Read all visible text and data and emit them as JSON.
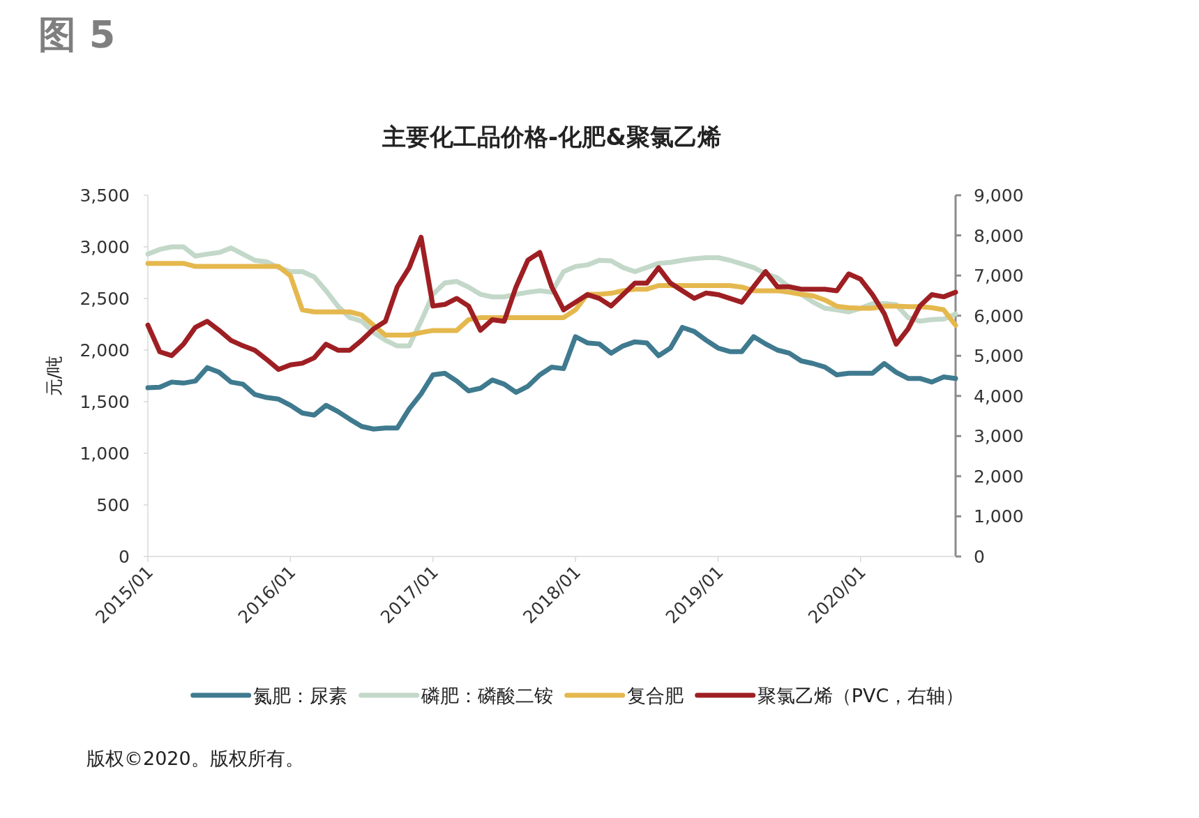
{
  "chart_data": {
    "type": "line",
    "title": "主要化工品价格-化肥&聚氯乙烯",
    "ylabel": "元/吨",
    "annotations": [
      "图 5",
      "版权©2020。版权所有。"
    ],
    "x": [
      "2015-01",
      "2015-02",
      "2015-03",
      "2015-04",
      "2015-05",
      "2015-06",
      "2015-07",
      "2015-08",
      "2015-09",
      "2015-10",
      "2015-11",
      "2015-12",
      "2016-01",
      "2016-02",
      "2016-03",
      "2016-04",
      "2016-05",
      "2016-06",
      "2016-07",
      "2016-08",
      "2016-09",
      "2016-10",
      "2016-11",
      "2016-12",
      "2017-01",
      "2017-02",
      "2017-03",
      "2017-04",
      "2017-05",
      "2017-06",
      "2017-07",
      "2017-08",
      "2017-09",
      "2017-10",
      "2017-11",
      "2017-12",
      "2018-01",
      "2018-02",
      "2018-03",
      "2018-04",
      "2018-05",
      "2018-06",
      "2018-07",
      "2018-08",
      "2018-09",
      "2018-10",
      "2018-11",
      "2018-12",
      "2019-01",
      "2019-02",
      "2019-03",
      "2019-04",
      "2019-05",
      "2019-06",
      "2019-07",
      "2019-08",
      "2019-09",
      "2019-10",
      "2019-11",
      "2019-12",
      "2020-01",
      "2020-02",
      "2020-03",
      "2020-04",
      "2020-05",
      "2020-06",
      "2020-07",
      "2020-08",
      "2020-09"
    ],
    "xlim": [
      "2015-01",
      "2020-09"
    ],
    "xticks": [
      {
        "value": "2015-01",
        "label": "2015/01"
      },
      {
        "value": "2016-01",
        "label": "2016/01"
      },
      {
        "value": "2017-01",
        "label": "2017/01"
      },
      {
        "value": "2018-01",
        "label": "2018/01"
      },
      {
        "value": "2019-01",
        "label": "2019/01"
      },
      {
        "value": "2020-01",
        "label": "2020/01"
      }
    ],
    "ylim": [
      0,
      3500
    ],
    "yticks": [
      {
        "value": 0,
        "label": "0"
      },
      {
        "value": 500,
        "label": "500"
      },
      {
        "value": 1000,
        "label": "1,000"
      },
      {
        "value": 1500,
        "label": "1,500"
      },
      {
        "value": 2000,
        "label": "2,000"
      },
      {
        "value": 2500,
        "label": "2,500"
      },
      {
        "value": 3000,
        "label": "3,000"
      },
      {
        "value": 3500,
        "label": "3,500"
      }
    ],
    "y2lim": [
      0,
      9000
    ],
    "y2ticks": [
      {
        "value": 0,
        "label": "0"
      },
      {
        "value": 1000,
        "label": "1,000"
      },
      {
        "value": 2000,
        "label": "2,000"
      },
      {
        "value": 3000,
        "label": "3,000"
      },
      {
        "value": 4000,
        "label": "4,000"
      },
      {
        "value": 5000,
        "label": "5,000"
      },
      {
        "value": 6000,
        "label": "6,000"
      },
      {
        "value": 7000,
        "label": "7,000"
      },
      {
        "value": 8000,
        "label": "8,000"
      },
      {
        "value": 9000,
        "label": "9,000"
      }
    ],
    "legend": "bottom",
    "grid": false,
    "line_style": "solid",
    "marker": "none",
    "series": [
      {
        "name": "氮肥：尿素",
        "color": "#3f7a8f",
        "values": [
          1635,
          1640,
          1690,
          1680,
          1700,
          1830,
          1785,
          1690,
          1670,
          1570,
          1540,
          1525,
          1465,
          1390,
          1370,
          1465,
          1405,
          1330,
          1260,
          1235,
          1245,
          1245,
          1430,
          1575,
          1760,
          1775,
          1700,
          1605,
          1630,
          1710,
          1670,
          1590,
          1650,
          1760,
          1835,
          1820,
          2130,
          2070,
          2060,
          1970,
          2040,
          2080,
          2070,
          1945,
          2020,
          2220,
          2180,
          2095,
          2020,
          1985,
          1985,
          2130,
          2060,
          2000,
          1970,
          1895,
          1870,
          1835,
          1760,
          1775,
          1775,
          1775,
          1870,
          1785,
          1725,
          1725,
          1690,
          1740,
          1725
        ]
      },
      {
        "name": "磷肥：磷酸二铵",
        "color": "#c3d8c9",
        "values": [
          2930,
          2975,
          3000,
          3000,
          2910,
          2930,
          2945,
          2990,
          2930,
          2870,
          2855,
          2800,
          2760,
          2760,
          2710,
          2575,
          2425,
          2315,
          2280,
          2170,
          2095,
          2040,
          2040,
          2280,
          2540,
          2650,
          2665,
          2610,
          2540,
          2515,
          2515,
          2540,
          2560,
          2575,
          2560,
          2760,
          2810,
          2825,
          2870,
          2865,
          2800,
          2760,
          2800,
          2840,
          2850,
          2870,
          2885,
          2895,
          2895,
          2870,
          2835,
          2800,
          2740,
          2700,
          2610,
          2540,
          2465,
          2405,
          2390,
          2370,
          2405,
          2450,
          2450,
          2440,
          2315,
          2280,
          2295,
          2300,
          2350
        ]
      },
      {
        "name": "复合肥",
        "color": "#e5b84e",
        "values": [
          2840,
          2840,
          2840,
          2840,
          2810,
          2810,
          2810,
          2810,
          2810,
          2810,
          2810,
          2810,
          2720,
          2390,
          2370,
          2370,
          2370,
          2370,
          2340,
          2240,
          2145,
          2145,
          2145,
          2170,
          2190,
          2190,
          2190,
          2295,
          2315,
          2315,
          2315,
          2315,
          2315,
          2315,
          2315,
          2315,
          2390,
          2540,
          2540,
          2550,
          2575,
          2590,
          2590,
          2625,
          2625,
          2625,
          2625,
          2625,
          2625,
          2625,
          2610,
          2575,
          2575,
          2575,
          2560,
          2540,
          2525,
          2485,
          2425,
          2410,
          2405,
          2405,
          2425,
          2425,
          2420,
          2420,
          2410,
          2390,
          2240
        ]
      },
      {
        "name": "聚氯乙烯（PVC，右轴）",
        "color": "#9e1f23",
        "axis": "y2",
        "values": [
          5765,
          5100,
          5005,
          5290,
          5710,
          5860,
          5635,
          5385,
          5250,
          5140,
          4910,
          4660,
          4775,
          4815,
          4950,
          5290,
          5140,
          5140,
          5385,
          5670,
          5860,
          6720,
          7195,
          7955,
          6240,
          6280,
          6430,
          6240,
          5635,
          5900,
          5860,
          6720,
          7385,
          7575,
          6720,
          6145,
          6335,
          6525,
          6430,
          6240,
          6525,
          6810,
          6810,
          7195,
          6810,
          6620,
          6430,
          6565,
          6525,
          6430,
          6335,
          6720,
          7100,
          6720,
          6720,
          6660,
          6660,
          6660,
          6620,
          7040,
          6910,
          6525,
          6050,
          5290,
          5670,
          6240,
          6525,
          6470,
          6585
        ]
      }
    ]
  }
}
